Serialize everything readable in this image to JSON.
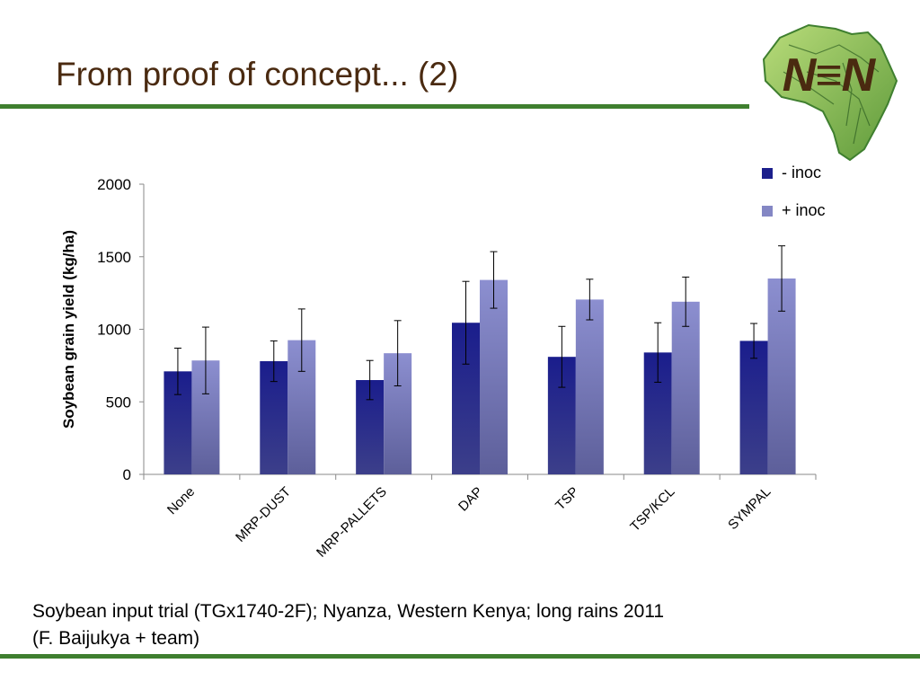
{
  "slide": {
    "title": "From proof of concept... (2)",
    "caption_line1": "Soybean input trial (TGx1740-2F); Nyanza, Western Kenya; long rains 2011",
    "caption_line2": "(F. Baijukya + team)"
  },
  "logo": {
    "text": "N≡N",
    "icon": "africa-map-leaf-logo"
  },
  "colors": {
    "accent_rule": "#3f7f2f",
    "title": "#4a2a10",
    "series_minus": "#1c1f8c",
    "series_plus": "#8487c4"
  },
  "chart_data": {
    "type": "bar",
    "title": "",
    "xlabel": "",
    "ylabel": "Soybean grain yield (kg/ha)",
    "ylim": [
      0,
      2000
    ],
    "yticks": [
      0,
      500,
      1000,
      1500,
      2000
    ],
    "grid": false,
    "legend_position": "top-right",
    "categories": [
      "None",
      "MRP-DUST",
      "MRP-PALLETS",
      "DAP",
      "TSP",
      "TSP/KCL",
      "SYMPAL"
    ],
    "series": [
      {
        "name": "- inoc",
        "values": [
          710,
          780,
          650,
          1045,
          810,
          840,
          920
        ],
        "errors": [
          160,
          140,
          135,
          285,
          210,
          205,
          120
        ]
      },
      {
        "name": "+ inoc",
        "values": [
          785,
          925,
          835,
          1340,
          1205,
          1190,
          1350
        ],
        "errors": [
          230,
          215,
          225,
          195,
          140,
          170,
          225
        ]
      }
    ]
  }
}
